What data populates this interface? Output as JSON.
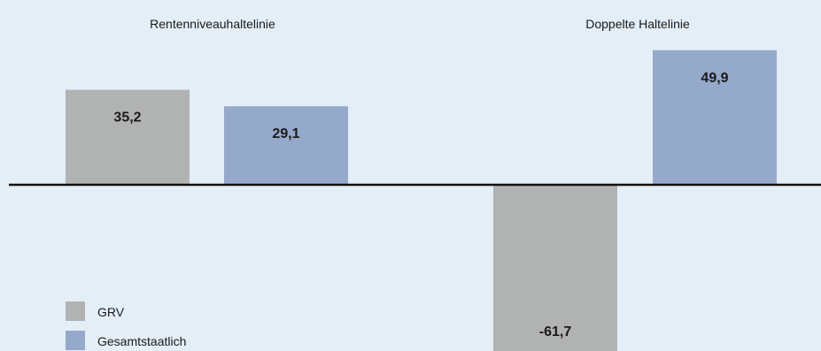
{
  "chart_data": {
    "type": "bar",
    "groups": [
      {
        "title": "Rentenniveauhaltelinie",
        "bars": [
          {
            "series": "GRV",
            "value": 35.2,
            "label": "35,2"
          },
          {
            "series": "Gesamtstaatlich",
            "value": 29.1,
            "label": "29,1"
          }
        ]
      },
      {
        "title": "Doppelte Haltelinie",
        "bars": [
          {
            "series": "GRV",
            "value": -61.7,
            "label": "-61,7"
          },
          {
            "series": "Gesamtstaatlich",
            "value": 49.9,
            "label": "49,9"
          }
        ]
      }
    ],
    "series": [
      {
        "name": "GRV",
        "color": "#b1b2b2"
      },
      {
        "name": "Gesamtstaatlich",
        "color": "#95a9cb"
      }
    ],
    "zero_line_color": "#111111",
    "grid": false,
    "legend_position": "bottom-left"
  }
}
